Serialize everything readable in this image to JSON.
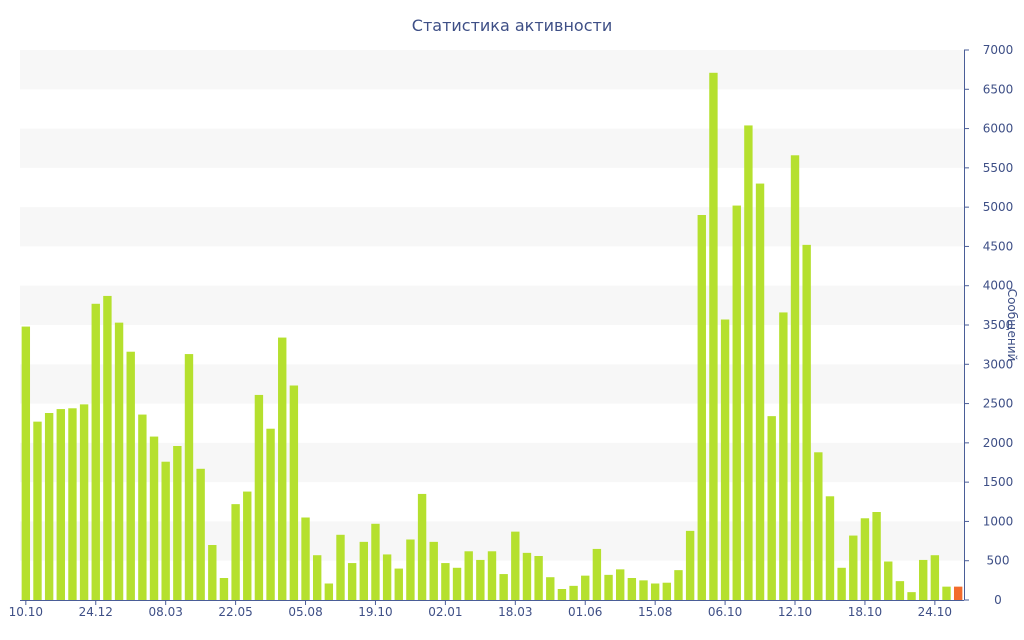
{
  "chart_data": {
    "type": "bar",
    "title": "Статистика активности",
    "ylabel": "Сообщений",
    "xlabel": "",
    "y_axis_side": "right",
    "ylim": [
      0,
      7000
    ],
    "yticks": [
      0,
      500,
      1000,
      1500,
      2000,
      2500,
      3000,
      3500,
      4000,
      4500,
      5000,
      5500,
      6000,
      6500,
      7000
    ],
    "xtick_labels": [
      {
        "index": 0,
        "label": "10.10"
      },
      {
        "index": 6,
        "label": "24.12"
      },
      {
        "index": 12,
        "label": "08.03"
      },
      {
        "index": 18,
        "label": "22.05"
      },
      {
        "index": 24,
        "label": "05.08"
      },
      {
        "index": 30,
        "label": "19.10"
      },
      {
        "index": 36,
        "label": "02.01"
      },
      {
        "index": 42,
        "label": "18.03"
      },
      {
        "index": 48,
        "label": "01.06"
      },
      {
        "index": 54,
        "label": "15.08"
      },
      {
        "index": 60,
        "label": "06.10"
      },
      {
        "index": 66,
        "label": "12.10"
      },
      {
        "index": 72,
        "label": "18.10"
      },
      {
        "index": 78,
        "label": "24.10"
      }
    ],
    "values": [
      3480,
      2270,
      2380,
      2430,
      2440,
      2490,
      3770,
      3870,
      3530,
      3160,
      2360,
      2080,
      1760,
      1960,
      3130,
      1670,
      700,
      280,
      1220,
      1380,
      2610,
      2180,
      3340,
      2730,
      1050,
      570,
      210,
      830,
      470,
      740,
      970,
      580,
      400,
      770,
      1350,
      740,
      470,
      410,
      620,
      510,
      620,
      330,
      870,
      600,
      560,
      290,
      140,
      180,
      310,
      650,
      320,
      390,
      280,
      250,
      210,
      220,
      380,
      880,
      4900,
      6710,
      3570,
      5020,
      6040,
      5300,
      2340,
      3660,
      5660,
      4520,
      1880,
      1320,
      410,
      820,
      1040,
      1120,
      490,
      240,
      100,
      510,
      570,
      170,
      170
    ],
    "highlight_index": 80,
    "grid": "alternating horizontal bands",
    "colors": {
      "bar": "#b5e02e",
      "highlight": "#f36b2c",
      "band": "#f7f7f7",
      "axis": "#4a5d97",
      "text": "#3e4f86"
    }
  }
}
